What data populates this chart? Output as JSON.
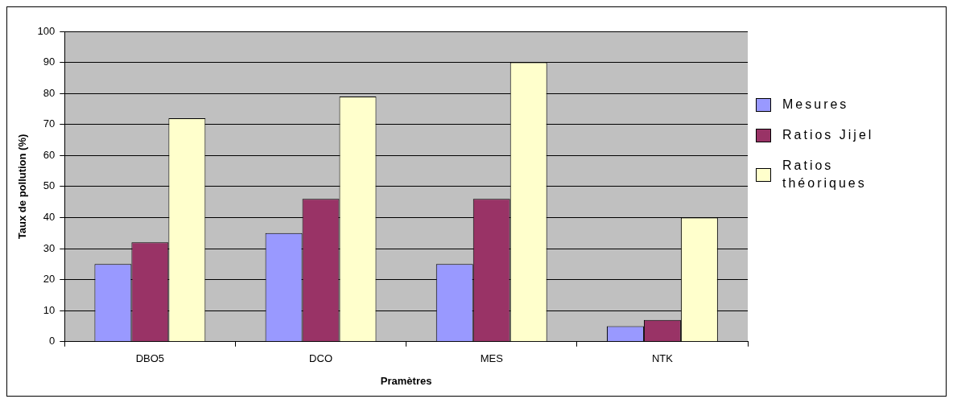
{
  "chart_data": {
    "type": "bar",
    "categories": [
      "DBO5",
      "DCO",
      "MES",
      "NTK"
    ],
    "series": [
      {
        "name": "Mesures",
        "color": "#9999ff",
        "values": [
          25,
          35,
          25,
          5
        ]
      },
      {
        "name": "Ratios Jijel",
        "color": "#993366",
        "values": [
          32,
          46,
          46,
          7
        ]
      },
      {
        "name": "Ratios théoriques",
        "color": "#ffffcc",
        "values": [
          72,
          79,
          90,
          40
        ]
      }
    ],
    "xlabel": "Pramètres",
    "ylabel": "Taux de pollution (%)",
    "ylim": [
      0,
      100
    ],
    "yticks": [
      0,
      10,
      20,
      30,
      40,
      50,
      60,
      70,
      80,
      90,
      100
    ],
    "grid": "y",
    "legend": "right"
  }
}
